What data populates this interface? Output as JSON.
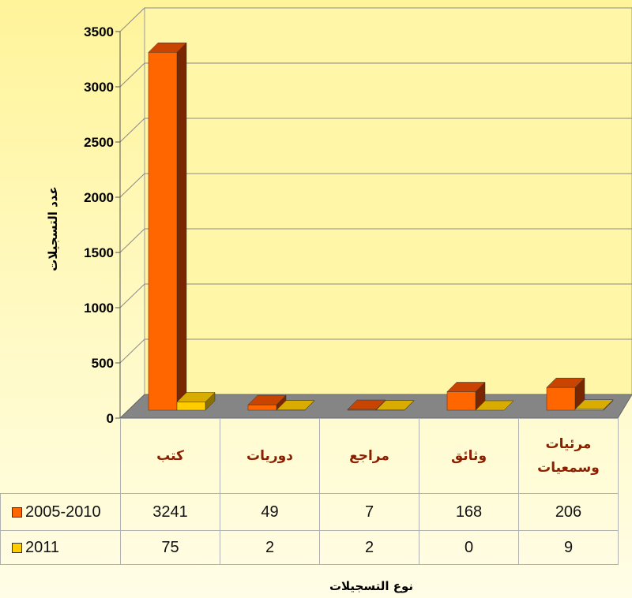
{
  "chart_data": {
    "type": "bar",
    "y_label": "عدد التسجيلات",
    "x_label": "نوع التسجيلات",
    "categories": [
      "كتب",
      "دوريات",
      "مراجع",
      "وثائق",
      "مرئيات وسمعيات"
    ],
    "series": [
      {
        "name": "2005-2010",
        "color": "#ff6600",
        "values": [
          3241,
          49,
          7,
          168,
          206
        ]
      },
      {
        "name": "2011",
        "color": "#ffcc00",
        "values": [
          75,
          2,
          2,
          0,
          9
        ]
      }
    ],
    "ylim": [
      0,
      3500
    ],
    "yticks": [
      0,
      500,
      1000,
      1500,
      2000,
      2500,
      3000,
      3500
    ],
    "grid": true
  }
}
